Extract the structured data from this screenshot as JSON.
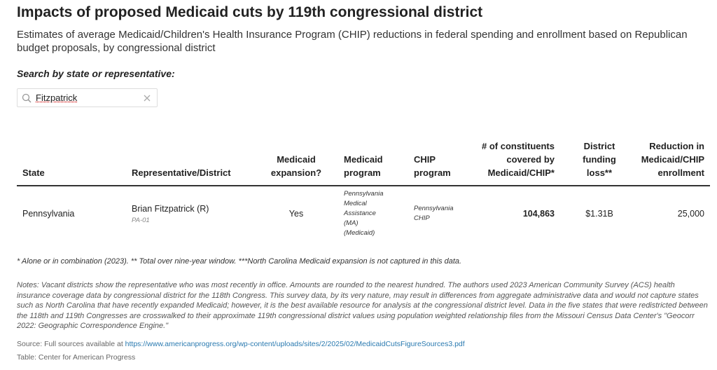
{
  "header": {
    "title": "Impacts of proposed Medicaid cuts by 119th congressional district",
    "subtitle": "Estimates of average Medicaid/Children's Health Insurance Program (CHIP) reductions in federal spending and enrollment based on Republican budget proposals, by congressional district"
  },
  "search": {
    "label": "Search by state or representative:",
    "query": "Fitzpatrick"
  },
  "table": {
    "columns": [
      "State",
      "Representative/District",
      "Medicaid expansion?",
      "Medicaid program",
      "CHIP program",
      "# of constituents covered by Medicaid/CHIP*",
      "District funding loss**",
      "Reduction in Medicaid/CHIP enrollment"
    ],
    "rows": [
      {
        "state": "Pennsylvania",
        "representative": "Brian Fitzpatrick (R)",
        "district": "PA-01",
        "expansion": "Yes",
        "medicaid_program": "Pennsylvania Medical Assistance (MA) (Medicaid)",
        "chip_program": "Pennsylvania CHIP",
        "constituents": "104,863",
        "funding_loss": "$1.31B",
        "enrollment_reduction": "25,000"
      }
    ]
  },
  "footnote": "* Alone or in combination (2023). ** Total over nine-year window. ***North Carolina Medicaid expansion is not captured in this data.",
  "notes": "Notes: Vacant districts show the representative who was most recently in office. Amounts are rounded to the nearest hundred. The authors used 2023 American Community Survey (ACS) health insurance coverage data by congressional district for the 118th Congress. This survey data, by its very nature, may result in differences from aggregate administrative data and would not capture states such as North Carolina that have recently expanded Medicaid; however, it is the best available resource for analysis at the congressional district level. Data in the five states that were redistricted between the 118th and 119th Congresses are crosswalked to their approximate 119th congressional district values using population weighted relationship files from the Missouri Census Data Center's \"Geocorr 2022: Geographic Correspondence Engine.\"",
  "source": {
    "label": "Source: Full sources available at",
    "url": "https://www.americanprogress.org/wp-content/uploads/sites/2/2025/02/MedicaidCutsFigureSources3.pdf"
  },
  "credit": "Table: Center for American Progress"
}
